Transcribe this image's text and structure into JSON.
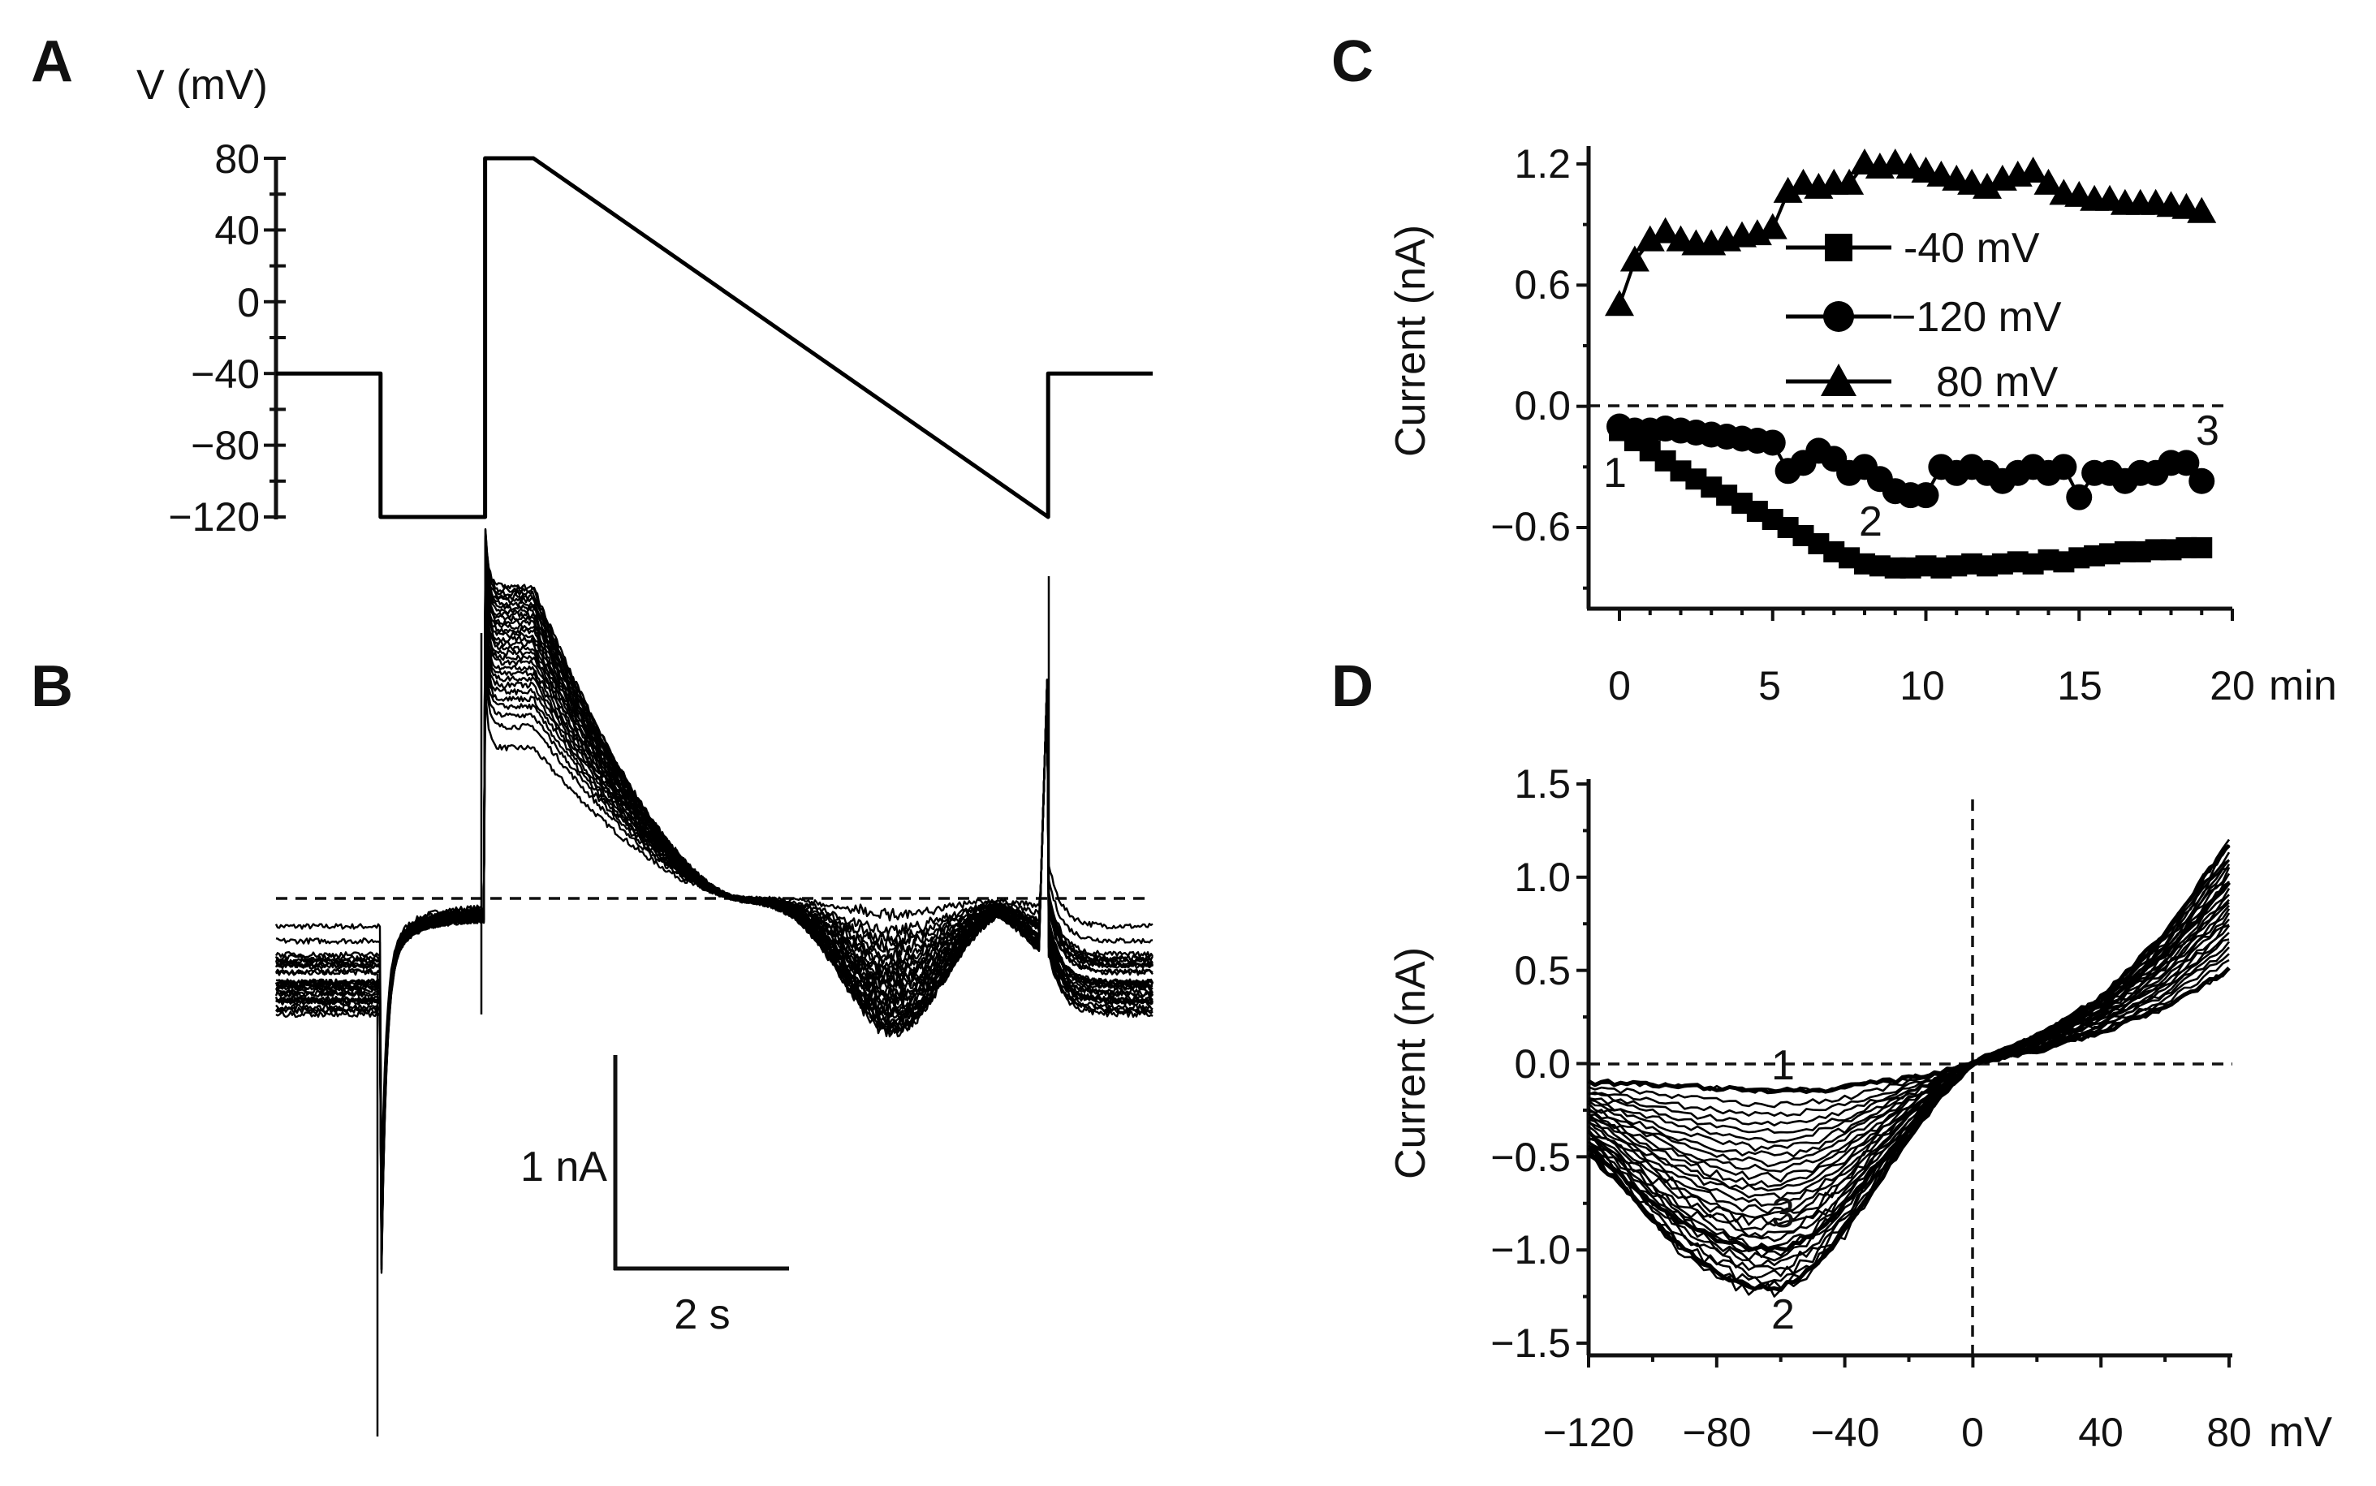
{
  "panels": {
    "A": {
      "letter": "A"
    },
    "B": {
      "letter": "B"
    },
    "C": {
      "letter": "C"
    },
    "D": {
      "letter": "D"
    }
  },
  "chart_data": [
    {
      "id": "A",
      "type": "line",
      "ylabel": "V (mV)",
      "ylim": [
        -120,
        80
      ],
      "yticks": [
        "80",
        "40",
        "0",
        "-40",
        "-80",
        "-120"
      ],
      "yticks_display": [
        "80",
        "40",
        "0",
        "−40",
        "−80",
        "−120"
      ],
      "series": [
        {
          "points": [
            [
              0,
              -40
            ],
            [
              0.65,
              -40
            ],
            [
              0.65,
              -120
            ],
            [
              1.3,
              -120
            ],
            [
              1.3,
              80
            ],
            [
              1.6,
              80
            ],
            [
              4.8,
              -120
            ],
            [
              4.8,
              -40
            ],
            [
              5.45,
              -40
            ]
          ]
        }
      ],
      "x_unit": "s",
      "grid": false
    },
    {
      "id": "B",
      "type": "line",
      "scale_bar": {
        "current": "1 nA",
        "time": "2 s",
        "current_value": 1,
        "time_value": 2
      },
      "series_count": 30,
      "time_range": [
        0,
        5.45
      ],
      "grid": false
    },
    {
      "id": "C",
      "type": "scatter",
      "ylabel": "Current (nA)",
      "xlabel": "min",
      "ylim": [
        -1.0,
        1.2
      ],
      "xlim": [
        -1,
        20
      ],
      "yticks": [
        "1.2",
        "0.6",
        "0.0",
        "-0.6"
      ],
      "yticks_display": [
        "1.2",
        "0.6",
        "0.0",
        "−0.6"
      ],
      "xticks": [
        "0",
        "5",
        "10",
        "15",
        "20"
      ],
      "x": [
        0,
        0.5,
        1,
        1.5,
        2,
        2.5,
        3,
        3.5,
        4,
        4.5,
        5,
        5.5,
        6,
        6.5,
        7,
        7.5,
        8,
        8.5,
        9,
        9.5,
        10,
        10.5,
        11,
        11.5,
        12,
        12.5,
        13,
        13.5,
        14,
        14.5,
        15,
        15.5,
        16,
        16.5,
        17,
        17.5,
        18,
        18.5,
        19
      ],
      "series": [
        {
          "name": "-40 mV",
          "name_display": "-40 mV",
          "marker": "square",
          "values": [
            -0.12,
            -0.17,
            -0.22,
            -0.27,
            -0.32,
            -0.36,
            -0.4,
            -0.44,
            -0.48,
            -0.52,
            -0.56,
            -0.6,
            -0.64,
            -0.68,
            -0.72,
            -0.75,
            -0.78,
            -0.79,
            -0.8,
            -0.8,
            -0.79,
            -0.8,
            -0.79,
            -0.78,
            -0.79,
            -0.78,
            -0.77,
            -0.78,
            -0.76,
            -0.77,
            -0.75,
            -0.74,
            -0.73,
            -0.72,
            -0.72,
            -0.71,
            -0.71,
            -0.7,
            -0.7
          ]
        },
        {
          "name": "−120 mV",
          "name_display": "−120 mV",
          "marker": "circle",
          "values": [
            -0.1,
            -0.12,
            -0.12,
            -0.11,
            -0.12,
            -0.13,
            -0.14,
            -0.15,
            -0.16,
            -0.17,
            -0.18,
            -0.32,
            -0.28,
            -0.22,
            -0.26,
            -0.33,
            -0.3,
            -0.36,
            -0.42,
            -0.44,
            -0.44,
            -0.3,
            -0.33,
            -0.3,
            -0.33,
            -0.37,
            -0.33,
            -0.3,
            -0.33,
            -0.3,
            -0.45,
            -0.33,
            -0.33,
            -0.37,
            -0.33,
            -0.33,
            -0.28,
            -0.28,
            -0.37
          ]
        },
        {
          "name": "80 mV",
          "name_display": "80 mV",
          "marker": "triangle",
          "values": [
            0.5,
            0.72,
            0.82,
            0.86,
            0.82,
            0.8,
            0.8,
            0.82,
            0.84,
            0.85,
            0.88,
            1.06,
            1.1,
            1.08,
            1.1,
            1.1,
            1.2,
            1.18,
            1.2,
            1.18,
            1.16,
            1.14,
            1.12,
            1.1,
            1.08,
            1.12,
            1.14,
            1.16,
            1.1,
            1.05,
            1.04,
            1.02,
            1.02,
            1.0,
            1.0,
            1.0,
            0.99,
            0.98,
            0.96
          ]
        }
      ],
      "annotations": [
        {
          "text": "1",
          "x": 0,
          "y": -0.35
        },
        {
          "text": "2",
          "x": 8,
          "y": -0.58
        },
        {
          "text": "3",
          "x": 18.7,
          "y": -0.14
        }
      ],
      "legend": "top-right",
      "grid": false
    },
    {
      "id": "D",
      "type": "line",
      "ylabel": "Current (nA)",
      "xlabel": "mV",
      "xlim": [
        -120,
        80
      ],
      "ylim": [
        -1.6,
        1.5
      ],
      "yticks": [
        "1.5",
        "1.0",
        "0.5",
        "0.0",
        "-0.5",
        "-1.0",
        "-1.5"
      ],
      "yticks_display": [
        "1.5",
        "1.0",
        "0.5",
        "0.0",
        "−0.5",
        "−1.0",
        "−1.5"
      ],
      "xticks": [
        "-120",
        "-80",
        "-40",
        "0",
        "40",
        "80"
      ],
      "xticks_display": [
        "−120",
        "−80",
        "−40",
        "0",
        "40",
        "80"
      ],
      "highlighted": [
        {
          "label": "1",
          "v": [
            -120,
            -100,
            -80,
            -60,
            -40,
            -20,
            0,
            20,
            40,
            60,
            80
          ],
          "i": [
            -0.1,
            -0.11,
            -0.13,
            -0.15,
            -0.13,
            -0.08,
            0.0,
            0.07,
            0.17,
            0.3,
            0.5
          ]
        },
        {
          "label": "2",
          "v": [
            -120,
            -110,
            -100,
            -90,
            -80,
            -70,
            -60,
            -50,
            -40,
            -30,
            -20,
            -10,
            0,
            20,
            40,
            60,
            80
          ],
          "i": [
            -0.48,
            -0.65,
            -0.84,
            -1.0,
            -1.12,
            -1.2,
            -1.2,
            -1.1,
            -0.9,
            -0.65,
            -0.4,
            -0.18,
            0.0,
            0.15,
            0.35,
            0.7,
            1.18
          ]
        },
        {
          "label": "3",
          "v": [
            -120,
            -110,
            -100,
            -90,
            -80,
            -70,
            -60,
            -50,
            -40,
            -30,
            -20,
            -10,
            0,
            20,
            40,
            60,
            80
          ],
          "i": [
            -0.45,
            -0.6,
            -0.75,
            -0.86,
            -0.94,
            -0.99,
            -1.0,
            -0.92,
            -0.75,
            -0.55,
            -0.35,
            -0.16,
            0.0,
            0.13,
            0.3,
            0.58,
            0.97
          ]
        }
      ],
      "gray_traces": 30,
      "annotations": [
        {
          "text": "1",
          "x": -57,
          "y": -0.02
        },
        {
          "text": "3",
          "x": -57,
          "y": -0.85
        },
        {
          "text": "2",
          "x": -57,
          "y": -1.37
        }
      ],
      "grid": false
    }
  ]
}
